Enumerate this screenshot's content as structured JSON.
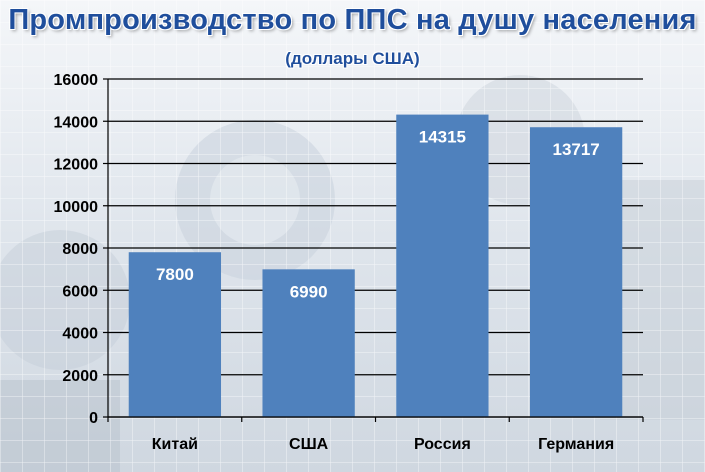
{
  "chart_data": {
    "type": "bar",
    "title": "Промпроизводство по ППС на душу населения",
    "subtitle": "(доллары США)",
    "categories": [
      "Китай",
      "США",
      "Россия",
      "Германия"
    ],
    "values": [
      7800,
      6990,
      14315,
      13717
    ],
    "data_labels": [
      "7800",
      "6990",
      "14315",
      "13717"
    ],
    "ylim": [
      0,
      16000
    ],
    "yticks": [
      0,
      2000,
      4000,
      6000,
      8000,
      10000,
      12000,
      14000,
      16000
    ],
    "grid": true,
    "legend": "none",
    "bar_color": "#4f81bd",
    "title_color": "#1f4e9c"
  }
}
